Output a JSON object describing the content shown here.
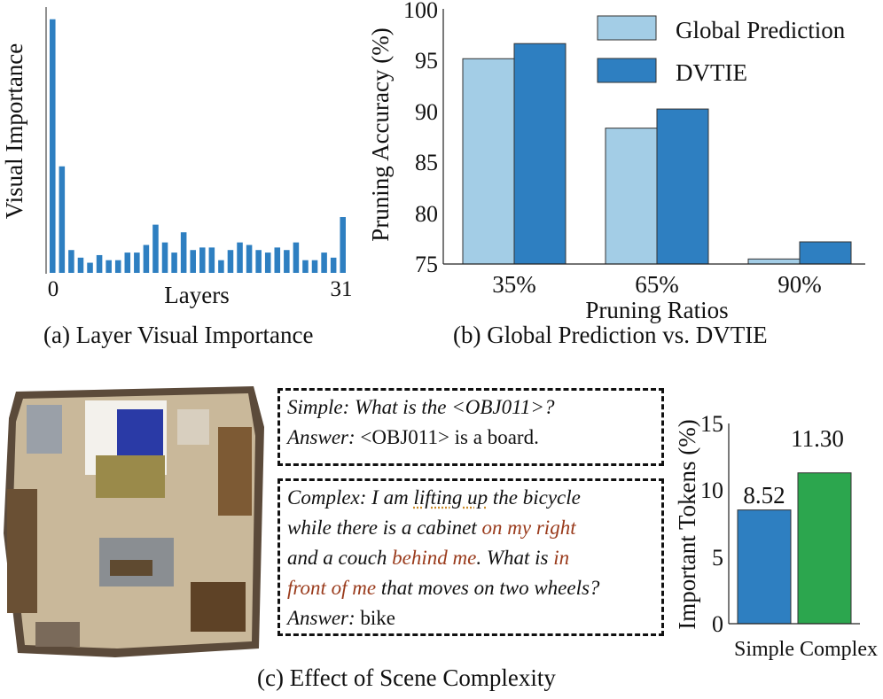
{
  "colors": {
    "bar_blue": "#2e7fc1",
    "light_blue": "#a3cde6",
    "dvtie_blue": "#2e7fc1",
    "green": "#2ca64e",
    "highlight_text": "#9a3b1c"
  },
  "chart_data": [
    {
      "id": "a",
      "type": "bar",
      "title": "(a) Layer Visual Importance",
      "xlabel": "Layers",
      "ylabel": "Visual Importance",
      "x_tick_labels": [
        "0",
        "31"
      ],
      "categories": [
        0,
        1,
        2,
        3,
        4,
        5,
        6,
        7,
        8,
        9,
        10,
        11,
        12,
        13,
        14,
        15,
        16,
        17,
        18,
        19,
        20,
        21,
        22,
        23,
        24,
        25,
        26,
        27,
        28,
        29,
        30,
        31
      ],
      "values": [
        1.0,
        0.42,
        0.09,
        0.06,
        0.04,
        0.07,
        0.05,
        0.05,
        0.08,
        0.08,
        0.11,
        0.19,
        0.12,
        0.08,
        0.16,
        0.09,
        0.1,
        0.1,
        0.05,
        0.09,
        0.12,
        0.11,
        0.09,
        0.08,
        0.1,
        0.09,
        0.12,
        0.05,
        0.05,
        0.08,
        0.06,
        0.22
      ],
      "ylim": [
        0,
        1.02
      ]
    },
    {
      "id": "b",
      "type": "bar",
      "title": "(b) Global Prediction vs. DVTIE",
      "xlabel": "Pruning Ratios",
      "ylabel": "Pruning Accuracy (%)",
      "categories": [
        "35%",
        "65%",
        "90%"
      ],
      "series": [
        {
          "name": "Global Prediction",
          "values": [
            95.4,
            88.5,
            75.5
          ]
        },
        {
          "name": "DVTIE",
          "values": [
            96.9,
            90.4,
            77.2
          ]
        }
      ],
      "y_ticks": [
        75,
        80,
        85,
        90,
        95,
        100
      ],
      "ylim": [
        75,
        100
      ],
      "legend": "top-right"
    },
    {
      "id": "c",
      "type": "bar",
      "ylabel": "Important Tokens (%)",
      "categories": [
        "Simple",
        "Complex"
      ],
      "values": [
        8.52,
        11.3
      ],
      "value_labels": [
        "8.52",
        "11.30"
      ],
      "y_ticks": [
        0,
        5,
        10,
        15
      ],
      "ylim": [
        0,
        15
      ]
    }
  ],
  "qa": {
    "simple": {
      "question": "Simple: What is the <OBJ011>?",
      "answer_label": "Answer:",
      "answer_text": " <OBJ011> is a board."
    },
    "complex": {
      "p1": "Complex: I am ",
      "p2": "lifting up",
      "p3": " the bicycle",
      "p4": "while there is a cabinet ",
      "p5": "on my right",
      "p6": "and a couch ",
      "p7": "behind me",
      "p8": ". What is ",
      "p9": "in",
      "p10": "front of me",
      "p11": " that moves on two wheels?",
      "answer_label": "Answer:",
      "answer_text": " bike"
    }
  },
  "caption_c": "(c) Effect of Scene Complexity"
}
